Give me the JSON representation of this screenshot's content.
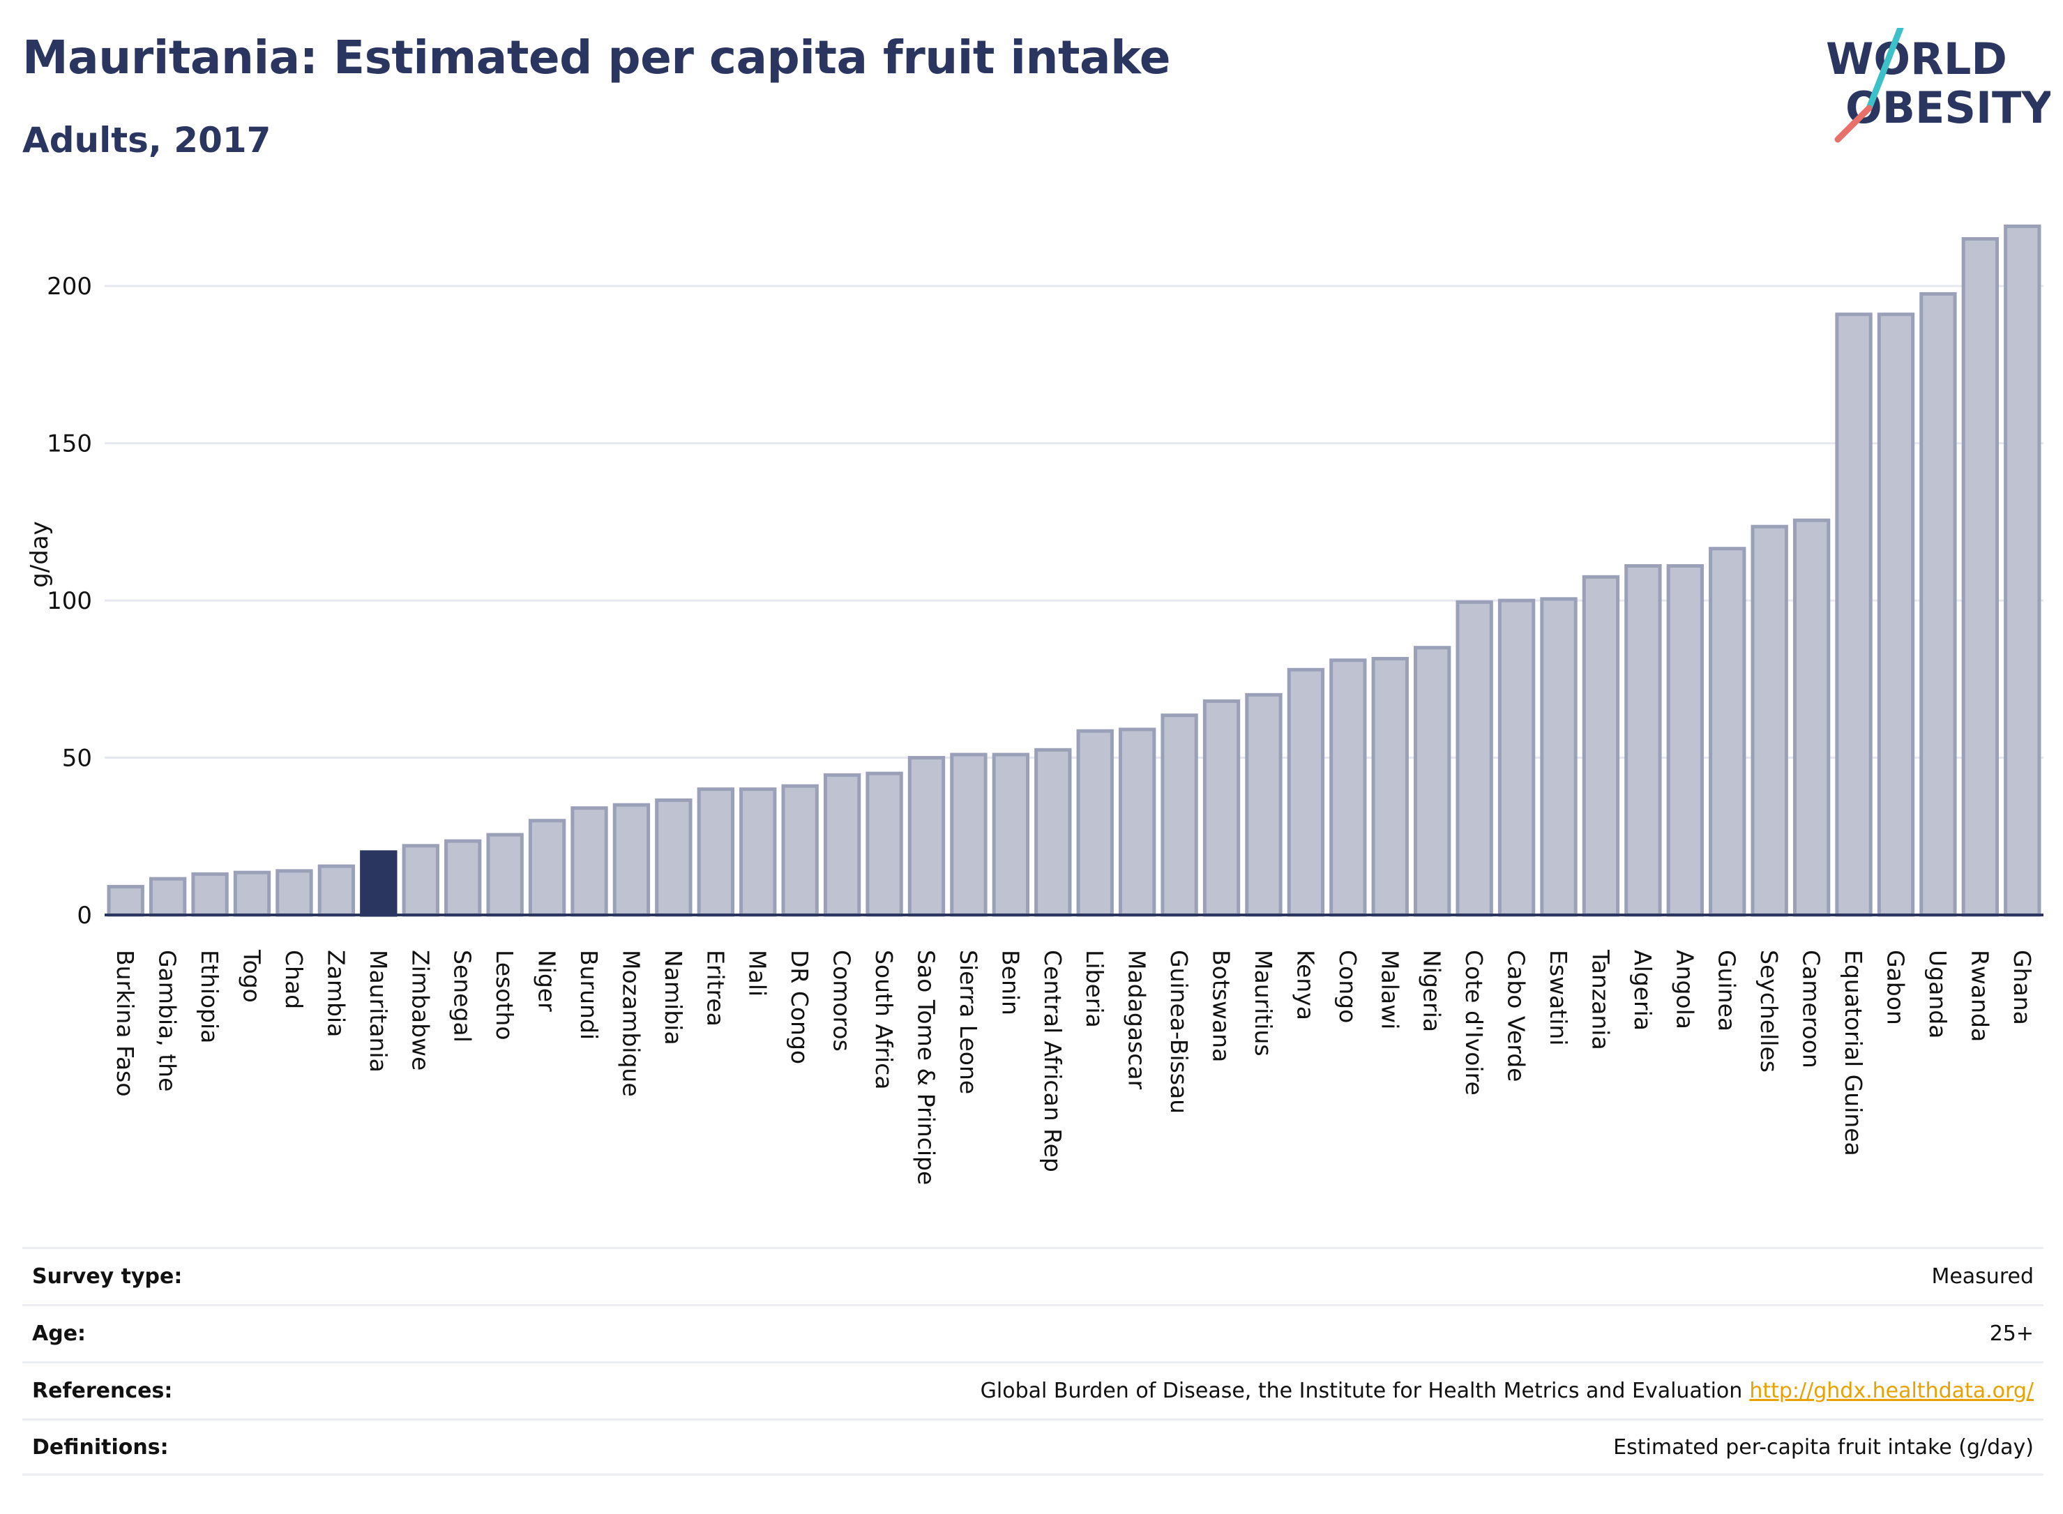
{
  "header": {
    "title": "Mauritania: Estimated per capita fruit intake",
    "subtitle": "Adults, 2017"
  },
  "logo": {
    "line1": "WORLD",
    "line2": "OBESITY",
    "colors": {
      "text": "#2a3560",
      "slash_top": "#3cc1c8",
      "slash_bottom": "#e8706a"
    }
  },
  "chart_data": {
    "type": "bar",
    "title": "Mauritania: Estimated per capita fruit intake",
    "subtitle": "Adults, 2017",
    "xlabel": "",
    "ylabel": "g/day",
    "ylim": [
      0,
      220
    ],
    "yticks": [
      0,
      50,
      100,
      150,
      200
    ],
    "grid": true,
    "highlight": "Mauritania",
    "colors": {
      "bar": "#bfc3d1",
      "bar_border": "#9aa0b8",
      "highlight": "#2a3560"
    },
    "categories": [
      "Burkina Faso",
      "Gambia, the",
      "Ethiopia",
      "Togo",
      "Chad",
      "Zambia",
      "Mauritania",
      "Zimbabwe",
      "Senegal",
      "Lesotho",
      "Niger",
      "Burundi",
      "Mozambique",
      "Namibia",
      "Eritrea",
      "Mali",
      "DR Congo",
      "Comoros",
      "South Africa",
      "Sao Tome & Principe",
      "Sierra Leone",
      "Benin",
      "Central African Rep",
      "Liberia",
      "Madagascar",
      "Guinea-Bissau",
      "Botswana",
      "Mauritius",
      "Kenya",
      "Congo",
      "Malawi",
      "Nigeria",
      "Cote d'Ivoire",
      "Cabo Verde",
      "Eswatini",
      "Tanzania",
      "Algeria",
      "Angola",
      "Guinea",
      "Seychelles",
      "Cameroon",
      "Equatorial Guinea",
      "Gabon",
      "Uganda",
      "Rwanda",
      "Ghana"
    ],
    "values": [
      9,
      11.5,
      13,
      13.5,
      14,
      15.5,
      20,
      22,
      23.5,
      25.5,
      30,
      34,
      35,
      36.5,
      40,
      40,
      41,
      44.5,
      45,
      50,
      51,
      51,
      52.5,
      58.5,
      59,
      63.5,
      68,
      70,
      78,
      81,
      81.5,
      85,
      99.5,
      100,
      100.5,
      107.5,
      111,
      111,
      116.5,
      123.5,
      125.5,
      191,
      191,
      197.5,
      215,
      219
    ]
  },
  "info": [
    {
      "key": "Survey type:",
      "value": "Measured",
      "link": ""
    },
    {
      "key": "Age:",
      "value": "25+",
      "link": ""
    },
    {
      "key": "References:",
      "value": "Global Burden of Disease, the Institute for Health Metrics and Evaluation",
      "link": "http://ghdx.healthdata.org/"
    },
    {
      "key": "Definitions:",
      "value": "Estimated per-capita fruit intake (g/day)",
      "link": ""
    }
  ]
}
